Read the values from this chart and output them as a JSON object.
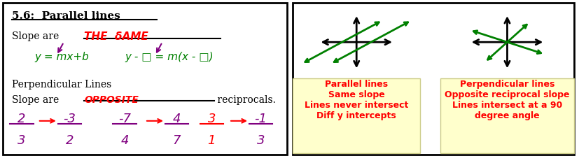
{
  "bg_color": "#ffffff",
  "left_panel": {
    "title": "5.6:  Parallel lines",
    "slope_are": "Slope are ",
    "same_text": "THE  δAME",
    "formula1": "y = mx+b",
    "formula2": "y - □ = m(x - □)",
    "perp_title": "Perpendicular Lines",
    "slope_are2": "Slope are ",
    "opp_text": "OPPOSITE",
    "recip_text": " reciprocals."
  },
  "parallel_box": {
    "text": "Parallel lines\nSame slope\nLines never intersect\nDiff y intercepts",
    "bg": "#ffffcc",
    "color": "#ff0000"
  },
  "perp_box": {
    "text": "Perpendicular lines\nOpposite reciprocal slope\nLines intersect at a 90\ndegree angle",
    "bg": "#ffffcc",
    "color": "#ff0000"
  }
}
